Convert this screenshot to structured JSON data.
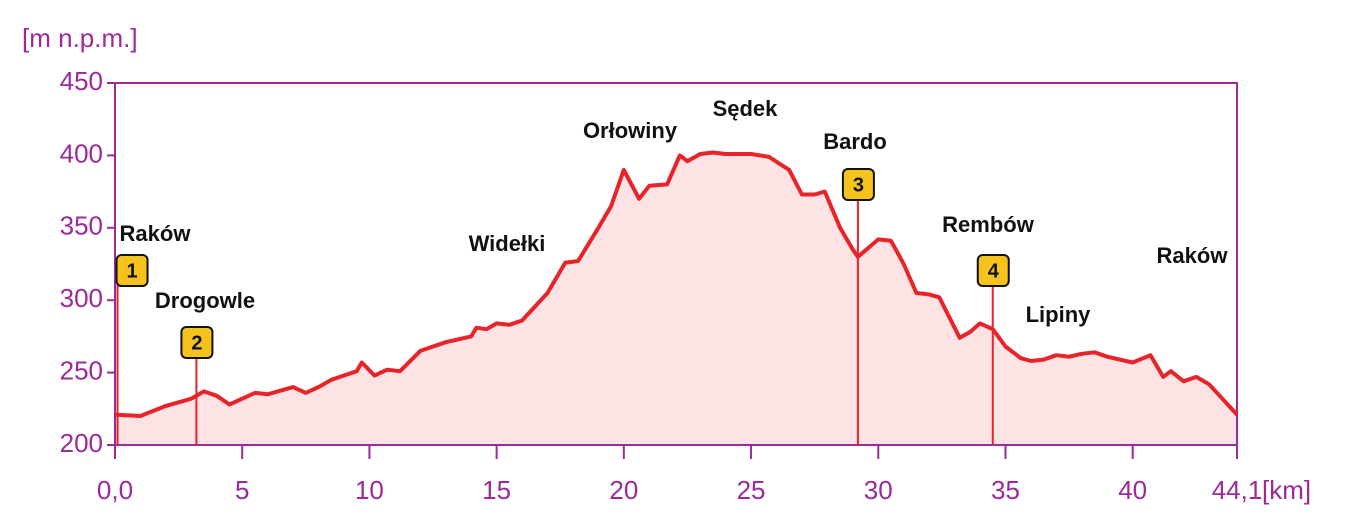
{
  "chart_data": {
    "type": "area",
    "y_label": "[m n.p.m.]",
    "x_label": "[km]",
    "color": "#e8232a",
    "fill": "#fde3e3",
    "axis_color": "#9b2a9b",
    "xlim": [
      0,
      44.1
    ],
    "ylim": [
      200,
      450
    ],
    "xticks": [
      {
        "value": 0,
        "label": "0,0"
      },
      5,
      10,
      15,
      20,
      25,
      30,
      35,
      40,
      {
        "value": 44.1,
        "label": "44,1"
      }
    ],
    "yticks": [
      200,
      250,
      300,
      350,
      400,
      450
    ],
    "x": [
      0,
      1,
      2,
      3,
      3.5,
      4,
      4.5,
      5,
      5.5,
      6,
      7,
      7.5,
      8,
      8.5,
      9,
      9.5,
      9.7,
      10.2,
      10.7,
      11.2,
      12,
      13,
      14,
      14.2,
      14.6,
      15,
      15.5,
      16,
      17,
      17.7,
      18.2,
      19,
      19.5,
      20,
      20.6,
      21,
      21.7,
      22.2,
      22.5,
      23,
      23.5,
      24,
      25,
      25.7,
      26.5,
      27,
      27.5,
      27.9,
      28.5,
      29,
      29.2,
      30,
      30.5,
      31,
      31.5,
      32,
      32.4,
      33.2,
      33.6,
      34,
      34.5,
      35,
      35.6,
      36,
      36.5,
      37,
      37.5,
      38,
      38.5,
      39,
      40,
      40.7,
      41.2,
      41.5,
      42,
      42.5,
      43,
      44.1
    ],
    "values": [
      221,
      220,
      227,
      232,
      237,
      234,
      228,
      232,
      236,
      235,
      240,
      236,
      240,
      245,
      248,
      251,
      257,
      248,
      252,
      251,
      265,
      271,
      275,
      281,
      280,
      284,
      283,
      286,
      305,
      326,
      327,
      350,
      365,
      390,
      370,
      379,
      380,
      400,
      396,
      401,
      402,
      401,
      401,
      399,
      390,
      373,
      373,
      375,
      350,
      335,
      330,
      342,
      341,
      325,
      305,
      304,
      302,
      274,
      278,
      284,
      280,
      268,
      260,
      258,
      259,
      262,
      261,
      263,
      264,
      261,
      257,
      262,
      247,
      251,
      244,
      247,
      242,
      221
    ],
    "waypoints": [
      {
        "label": "1",
        "x": 0.1
      },
      {
        "label": "2",
        "x": 3.2
      },
      {
        "label": "3",
        "x": 29.2
      },
      {
        "label": "4",
        "x": 34.5
      }
    ],
    "places": [
      "Raków",
      "Drogowle",
      "Widełki",
      "Orłowiny",
      "Sędek",
      "Bardo",
      "Rembów",
      "Lipiny",
      "Raków"
    ]
  }
}
